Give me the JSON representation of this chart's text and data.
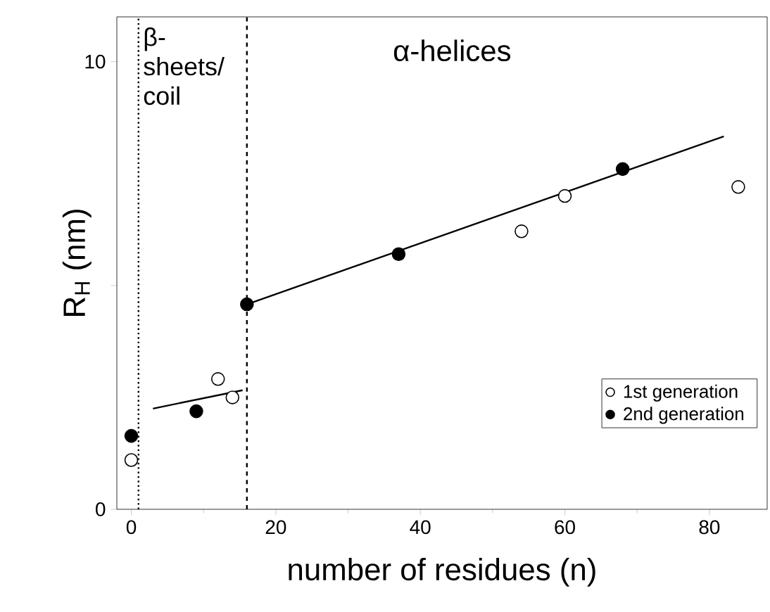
{
  "chart_data": {
    "type": "scatter",
    "xlabel": "number of residues (n)",
    "ylabel": "R$_{H}$ (nm)",
    "xlim": [
      -2,
      88
    ],
    "ylim": [
      0,
      11
    ],
    "xticks": [
      0,
      20,
      40,
      60,
      80
    ],
    "yticks": [
      0,
      {
        "value": 5,
        "label": null
      },
      10
    ],
    "legend": "bottom right",
    "grid": false,
    "series": [
      {
        "name": "1st generation",
        "marker": "circle",
        "color": "#ffffff",
        "x": [
          0,
          12,
          14,
          54,
          60,
          84
        ],
        "values": [
          1.1,
          2.91,
          2.5,
          6.21,
          7.0,
          7.2
        ]
      },
      {
        "name": "2nd generation",
        "marker": "circle",
        "color": "#000000",
        "x": [
          0,
          9,
          16,
          37,
          68
        ],
        "values": [
          1.64,
          2.19,
          4.58,
          5.7,
          7.6
        ]
      },
      {
        "type": "line",
        "marker": "none",
        "color": "#000000",
        "x": [
          3,
          15.4
        ],
        "values": [
          2.25,
          2.66
        ]
      },
      {
        "type": "line",
        "marker": "none",
        "color": "#000000",
        "x": [
          16,
          82
        ],
        "values": [
          4.58,
          8.33
        ]
      }
    ],
    "ref_lines": [
      {
        "axis": "x",
        "value": 1,
        "line_style": "dotted"
      },
      {
        "axis": "x",
        "value": 16,
        "line_style": "dashed"
      }
    ],
    "annotations": [
      "β-sheets/ coil",
      "α-helices"
    ]
  }
}
